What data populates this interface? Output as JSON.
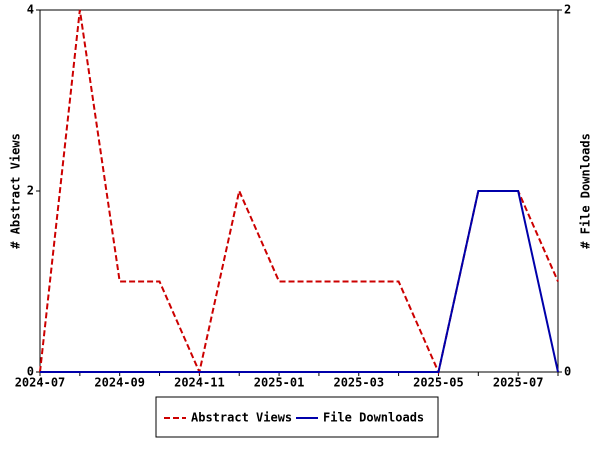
{
  "chart_data": {
    "type": "line",
    "categories": [
      "2024-07",
      null,
      "2024-09",
      null,
      "2024-11",
      null,
      "2025-01",
      null,
      "2025-03",
      null,
      "2025-05",
      null,
      "2025-07",
      null
    ],
    "y_label": "# Abstract Views",
    "y2_label": "# File Downloads",
    "series": [
      {
        "name": "Abstract Views",
        "color": "#cc0000",
        "dash": true,
        "values": [
          0,
          4,
          1,
          1,
          0,
          2,
          1,
          1,
          1,
          1,
          0,
          2,
          2,
          1
        ]
      },
      {
        "name": "File Downloads",
        "color": "#0000aa",
        "dash": false,
        "axis": "y2",
        "values": [
          0,
          0,
          0,
          0,
          0,
          0,
          0,
          0,
          0,
          0,
          0,
          1,
          1,
          0
        ]
      }
    ],
    "ylim": [
      0,
      4
    ],
    "yticks": [
      0,
      2,
      4
    ],
    "y2lim": [
      0,
      2
    ],
    "y2ticks": [
      0,
      2
    ],
    "grid": false
  }
}
